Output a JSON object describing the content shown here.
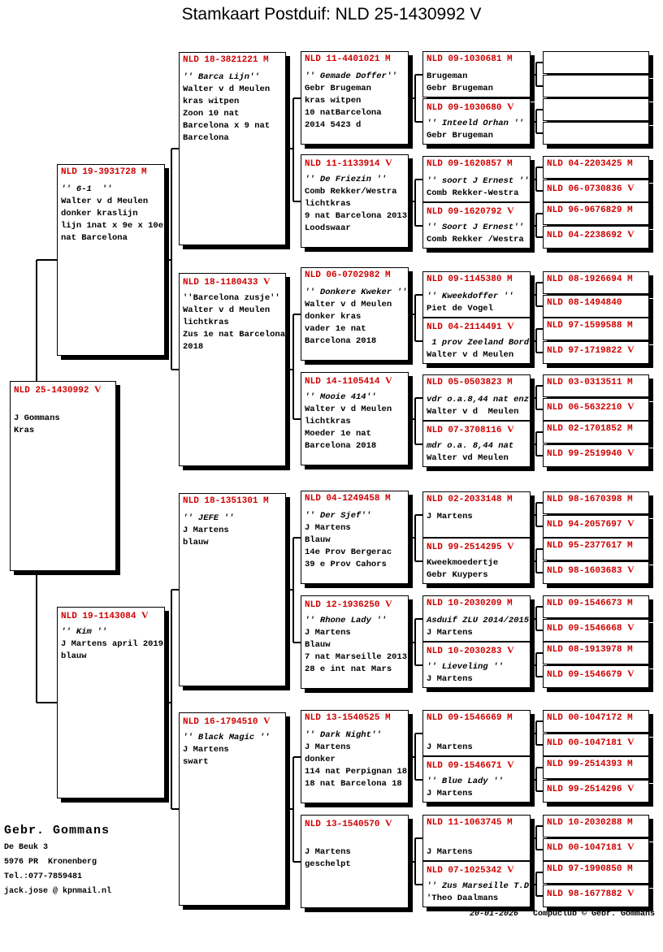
{
  "title": "Stamkaart Postduif: NLD 25-1430992 V",
  "accent_color": "#d00000",
  "pedigree": {
    "generations": [
      {
        "name": "subject",
        "boxes": [
          {
            "ring": "NLD 25-1430992",
            "sex": "V",
            "lines": [
              "",
              "J Gommans",
              "Kras"
            ],
            "italic": []
          }
        ]
      },
      {
        "name": "parents",
        "boxes": [
          {
            "ring": "NLD 19-3931728",
            "sex": "M",
            "lines": [
              "'' 6-1  ''",
              "Walter v d Meulen",
              "donker kraslijn",
              "lijn 1nat x 9e x 10e",
              "nat Barcelona"
            ],
            "italic": [
              0
            ]
          },
          {
            "ring": "NLD 19-1143084",
            "sex": "V",
            "lines": [
              "'' Kim ''",
              "J Martens april 2019",
              "blauw"
            ],
            "italic": [
              0
            ]
          }
        ]
      },
      {
        "name": "grandparents",
        "boxes": [
          {
            "ring": "NLD 18-3821221",
            "sex": "M",
            "lines": [
              "'' Barca Lijn''",
              "Walter v d Meulen",
              "kras witpen",
              "Zoon 10 nat",
              "Barcelona x 9 nat",
              "Barcelona"
            ],
            "italic": [
              0
            ]
          },
          {
            "ring": "NLD 18-1180433",
            "sex": "V",
            "lines": [
              "''Barcelona zusje''",
              "Walter v d Meulen",
              "lichtkras",
              "Zus 1e nat Barcelona",
              "2018"
            ],
            "italic": []
          },
          {
            "ring": "NLD 18-1351301",
            "sex": "M",
            "lines": [
              "'' JEFE ''",
              "J Martens",
              "blauw"
            ],
            "italic": [
              0
            ]
          },
          {
            "ring": "NLD 16-1794510",
            "sex": "V",
            "lines": [
              "'' Black Magic ''",
              "J Martens",
              "swart"
            ],
            "italic": [
              0
            ]
          }
        ]
      },
      {
        "name": "great-grandparents",
        "boxes": [
          {
            "ring": "NLD 11-4401021",
            "sex": "M",
            "lines": [
              "'' Gemade Doffer''",
              "Gebr Brugeman",
              "kras witpen",
              "10 natBarcelona",
              "2014 5423 d"
            ],
            "italic": [
              0
            ]
          },
          {
            "ring": "NLD 11-1133914",
            "sex": "V",
            "lines": [
              "'' De Friezin ''",
              "Comb Rekker/Westra",
              "lichtkras",
              "9 nat Barcelona 2013",
              "Loodswaar"
            ],
            "italic": [
              0
            ]
          },
          {
            "ring": "NLD 06-0702982",
            "sex": "M",
            "lines": [
              "'' Donkere Kweker ''",
              "Walter v d Meulen",
              "donker kras",
              "vader 1e nat",
              "Barcelona 2018"
            ],
            "italic": [
              0
            ]
          },
          {
            "ring": "NLD 14-1105414",
            "sex": "V",
            "lines": [
              "'' Mooie 414''",
              "Walter v d Meulen",
              "lichtkras",
              "Moeder 1e nat",
              "Barcelona 2018"
            ],
            "italic": [
              0
            ]
          },
          {
            "ring": "NLD 04-1249458",
            "sex": "M",
            "lines": [
              "'' Der Sjef''",
              "J Martens",
              "Blauw",
              "14e Prov Bergerac",
              "39 e Prov Cahors"
            ],
            "italic": [
              0
            ]
          },
          {
            "ring": "NLD 12-1936250",
            "sex": "V",
            "lines": [
              "'' Rhone Lady ''",
              "J Martens",
              "Blauw",
              "7 nat Marseille 2013",
              "28 e int nat Mars"
            ],
            "italic": [
              0
            ]
          },
          {
            "ring": "NLD 13-1540525",
            "sex": "M",
            "lines": [
              "'' Dark Night''",
              "J Martens",
              "donker",
              "114 nat Perpignan 18",
              "18 nat Barcelona 18"
            ],
            "italic": [
              0
            ]
          },
          {
            "ring": "NLD 13-1540570",
            "sex": "V",
            "lines": [
              "",
              "J Martens",
              "geschelpt"
            ],
            "italic": []
          }
        ]
      },
      {
        "name": "great-great-grandparents",
        "boxes": [
          {
            "ring": "NLD 09-1030681",
            "sex": "M",
            "lines": [
              "Brugeman",
              "Gebr Brugeman"
            ],
            "italic": []
          },
          {
            "ring": "NLD 09-1030680",
            "sex": "V",
            "lines": [
              "'' Inteeld Orhan ''",
              "Gebr Brugeman"
            ],
            "italic": [
              0
            ]
          },
          {
            "ring": "NLD 09-1620857",
            "sex": "M",
            "lines": [
              "'' soort J Ernest ''",
              "Comb Rekker-Westra"
            ],
            "italic": [
              0
            ]
          },
          {
            "ring": "NLD 09-1620792",
            "sex": "V",
            "lines": [
              "'' Soort J Ernest''",
              "Comb Rekker /Westra"
            ],
            "italic": [
              0
            ]
          },
          {
            "ring": "NLD 09-1145380",
            "sex": "M",
            "lines": [
              "'' Kweekdoffer ''",
              "Piet de Vogel"
            ],
            "italic": [
              0
            ]
          },
          {
            "ring": "NLD 04-2114491",
            "sex": "V",
            "lines": [
              " 1 prov Zeeland Bord",
              "Walter v d Meulen"
            ],
            "italic": [
              0
            ]
          },
          {
            "ring": "NLD 05-0503823",
            "sex": "M",
            "lines": [
              "vdr o.a.8,44 nat enz",
              "Walter v d  Meulen"
            ],
            "italic": [
              0
            ]
          },
          {
            "ring": "NLD 07-3708116",
            "sex": "V",
            "lines": [
              "mdr o.a. 8,44 nat",
              "Walter vd Meulen"
            ],
            "italic": [
              0
            ]
          },
          {
            "ring": "NLD 02-2033148",
            "sex": "M",
            "lines": [
              "J Martens"
            ],
            "italic": []
          },
          {
            "ring": "NLD 99-2514295",
            "sex": "V",
            "lines": [
              "Kweekmoedertje",
              "Gebr Kuypers"
            ],
            "italic": []
          },
          {
            "ring": "NLD 10-2030209",
            "sex": "M",
            "lines": [
              "Asduif ZLU 2014/2015",
              "J Martens"
            ],
            "italic": [
              0
            ]
          },
          {
            "ring": "NLD 10-2030283",
            "sex": "V",
            "lines": [
              "'' Lieveling ''",
              "J Martens"
            ],
            "italic": [
              0
            ]
          },
          {
            "ring": "NLD 09-1546669",
            "sex": "M",
            "lines": [
              "",
              "J Martens"
            ],
            "italic": []
          },
          {
            "ring": "NLD 09-1546671",
            "sex": "V",
            "lines": [
              "'' Blue Lady ''",
              "J Martens"
            ],
            "italic": [
              0
            ]
          },
          {
            "ring": "NLD 11-1063745",
            "sex": "M",
            "lines": [
              "",
              "J Martens"
            ],
            "italic": []
          },
          {
            "ring": "NLD 07-1025342",
            "sex": "V",
            "lines": [
              "'' Zus Marseille T.D",
              "'Theo Daalmans"
            ],
            "italic": [
              0
            ]
          }
        ]
      },
      {
        "name": "great-great-great-grandparents",
        "boxes": [
          {
            "ring": "",
            "sex": "",
            "lines": [],
            "italic": []
          },
          {
            "ring": "",
            "sex": "",
            "lines": [],
            "italic": []
          },
          {
            "ring": "",
            "sex": "",
            "lines": [],
            "italic": []
          },
          {
            "ring": "",
            "sex": "",
            "lines": [],
            "italic": []
          },
          {
            "ring": "NLD 04-2203425",
            "sex": "M",
            "lines": [],
            "italic": []
          },
          {
            "ring": "NLD 06-0730836",
            "sex": "V",
            "lines": [],
            "italic": []
          },
          {
            "ring": "NLD 96-9676829",
            "sex": "M",
            "lines": [],
            "italic": []
          },
          {
            "ring": "NLD 04-2238692",
            "sex": "V",
            "lines": [],
            "italic": []
          },
          {
            "ring": "NLD 08-1926694",
            "sex": "M",
            "lines": [],
            "italic": []
          },
          {
            "ring": "NLD 08-1494840",
            "sex": "",
            "lines": [],
            "italic": []
          },
          {
            "ring": "NLD 97-1599588",
            "sex": "M",
            "lines": [],
            "italic": []
          },
          {
            "ring": "NLD 97-1719822",
            "sex": "V",
            "lines": [],
            "italic": []
          },
          {
            "ring": "NLD 03-0313511",
            "sex": "M",
            "lines": [],
            "italic": []
          },
          {
            "ring": "NLD 06-5632210",
            "sex": "V",
            "lines": [],
            "italic": []
          },
          {
            "ring": "NLD 02-1701852",
            "sex": "M",
            "lines": [],
            "italic": []
          },
          {
            "ring": "NLD 99-2519940",
            "sex": "V",
            "lines": [],
            "italic": []
          },
          {
            "ring": "NLD 98-1670398",
            "sex": "M",
            "lines": [],
            "italic": []
          },
          {
            "ring": "NLD 94-2057697",
            "sex": "V",
            "lines": [],
            "italic": []
          },
          {
            "ring": "NLD 95-2377617",
            "sex": "M",
            "lines": [],
            "italic": []
          },
          {
            "ring": "NLD 98-1603683",
            "sex": "V",
            "lines": [],
            "italic": []
          },
          {
            "ring": "NLD 09-1546673",
            "sex": "M",
            "lines": [],
            "italic": []
          },
          {
            "ring": "NLD 09-1546668",
            "sex": "V",
            "lines": [],
            "italic": []
          },
          {
            "ring": "NLD 08-1913978",
            "sex": "M",
            "lines": [],
            "italic": []
          },
          {
            "ring": "NLD 09-1546679",
            "sex": "V",
            "lines": [],
            "italic": []
          },
          {
            "ring": "NLD 00-1047172",
            "sex": "M",
            "lines": [],
            "italic": []
          },
          {
            "ring": "NLD 00-1047181",
            "sex": "V",
            "lines": [],
            "italic": []
          },
          {
            "ring": "NLD 99-2514393",
            "sex": "M",
            "lines": [],
            "italic": []
          },
          {
            "ring": "NLD 99-2514296",
            "sex": "V",
            "lines": [],
            "italic": []
          },
          {
            "ring": "NLD 10-2030288",
            "sex": "M",
            "lines": [],
            "italic": []
          },
          {
            "ring": "NLD 00-1047181",
            "sex": "V",
            "lines": [],
            "italic": []
          },
          {
            "ring": "NLD 97-1990850",
            "sex": "M",
            "lines": [],
            "italic": []
          },
          {
            "ring": "NLD 98-1677882",
            "sex": "V",
            "lines": [],
            "italic": []
          }
        ]
      }
    ]
  },
  "footer": {
    "owner": "Gebr. Gommans",
    "address": [
      "De Beuk 3",
      "5976 PR  Kronenberg",
      "Tel.:077-7859481",
      "jack.jose @ kpnmail.nl"
    ],
    "date": "20-01-2026",
    "credit": "Compuclub © Gebr. Gommans"
  }
}
